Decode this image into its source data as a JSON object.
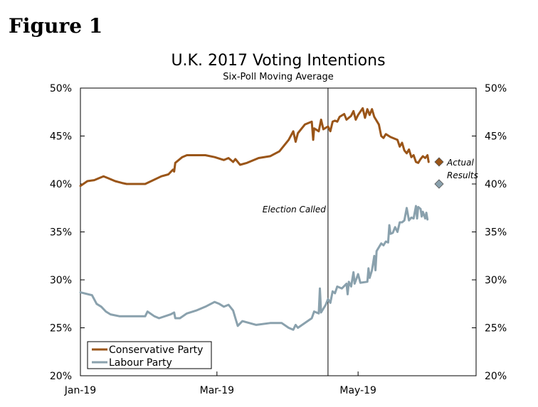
{
  "figure_label": "Figure 1",
  "chart_data": {
    "type": "line",
    "title": "U.K. 2017 Voting Intentions",
    "subtitle": "Six-Poll Moving Average",
    "xlabel": "",
    "ylabel": "",
    "x_ticks": [
      "Jan-19",
      "Mar-19",
      "May-19"
    ],
    "x_tick_days": [
      0,
      59,
      120
    ],
    "xlim": [
      0,
      171
    ],
    "ylim": [
      20,
      50
    ],
    "y_ticks": [
      20,
      25,
      30,
      35,
      40,
      45,
      50
    ],
    "y_tick_labels": [
      "20%",
      "25%",
      "30%",
      "35%",
      "40%",
      "45%",
      "50%"
    ],
    "grid": false,
    "legend_position": "bottom-left",
    "series": [
      {
        "name": "Conservative Party",
        "color": "#9a5518",
        "points": [
          [
            0,
            39.8
          ],
          [
            3,
            40.3
          ],
          [
            6,
            40.4
          ],
          [
            8,
            40.6
          ],
          [
            10,
            40.8
          ],
          [
            12,
            40.6
          ],
          [
            15,
            40.3
          ],
          [
            18,
            40.1
          ],
          [
            20,
            40.0
          ],
          [
            28,
            40.0
          ],
          [
            35,
            40.8
          ],
          [
            38,
            41.0
          ],
          [
            40,
            41.5
          ],
          [
            40.5,
            41.3
          ],
          [
            41,
            42.2
          ],
          [
            44,
            42.8
          ],
          [
            46,
            43.0
          ],
          [
            54,
            43.0
          ],
          [
            58,
            42.8
          ],
          [
            62,
            42.5
          ],
          [
            64,
            42.7
          ],
          [
            66,
            42.3
          ],
          [
            67,
            42.6
          ],
          [
            69,
            42.0
          ],
          [
            72,
            42.2
          ],
          [
            77,
            42.7
          ],
          [
            82,
            42.9
          ],
          [
            86,
            43.4
          ],
          [
            90,
            44.6
          ],
          [
            92,
            45.5
          ],
          [
            93,
            44.4
          ],
          [
            94,
            45.3
          ],
          [
            97,
            46.2
          ],
          [
            100,
            46.5
          ],
          [
            100.6,
            44.6
          ],
          [
            101,
            45.8
          ],
          [
            103,
            45.5
          ],
          [
            104,
            46.7
          ],
          [
            105,
            45.7
          ],
          [
            107,
            46.0
          ],
          [
            108,
            45.5
          ],
          [
            109,
            46.5
          ],
          [
            110,
            46.6
          ],
          [
            111,
            46.5
          ],
          [
            112,
            47.0
          ],
          [
            114,
            47.3
          ],
          [
            115,
            46.7
          ],
          [
            117,
            47.1
          ],
          [
            118,
            47.6
          ],
          [
            119,
            46.7
          ],
          [
            120,
            47.2
          ],
          [
            122,
            47.9
          ],
          [
            123,
            46.9
          ],
          [
            124,
            47.8
          ],
          [
            125,
            47.2
          ],
          [
            126,
            47.8
          ],
          [
            127,
            47.0
          ],
          [
            129,
            46.2
          ],
          [
            130,
            45.0
          ],
          [
            131,
            44.8
          ],
          [
            132,
            45.2
          ],
          [
            134,
            44.9
          ],
          [
            137,
            44.6
          ],
          [
            138,
            43.9
          ],
          [
            139,
            44.3
          ],
          [
            140,
            43.5
          ],
          [
            141,
            43.2
          ],
          [
            142,
            43.6
          ],
          [
            143,
            42.8
          ],
          [
            144,
            43.0
          ],
          [
            145,
            42.3
          ],
          [
            146,
            42.2
          ],
          [
            147,
            42.6
          ],
          [
            148,
            42.9
          ],
          [
            149,
            42.7
          ],
          [
            150,
            43.0
          ],
          [
            150.5,
            42.3
          ]
        ]
      },
      {
        "name": "Labour Party",
        "color": "#8aa1ad",
        "points": [
          [
            0,
            28.7
          ],
          [
            5,
            28.4
          ],
          [
            7,
            27.5
          ],
          [
            9,
            27.2
          ],
          [
            11,
            26.7
          ],
          [
            13,
            26.4
          ],
          [
            17,
            26.2
          ],
          [
            28,
            26.2
          ],
          [
            29,
            26.7
          ],
          [
            32,
            26.2
          ],
          [
            34,
            26.0
          ],
          [
            39,
            26.4
          ],
          [
            40.5,
            26.6
          ],
          [
            41,
            26.0
          ],
          [
            43,
            26.0
          ],
          [
            46,
            26.5
          ],
          [
            50,
            26.8
          ],
          [
            54,
            27.2
          ],
          [
            58,
            27.7
          ],
          [
            60,
            27.5
          ],
          [
            62,
            27.2
          ],
          [
            64,
            27.4
          ],
          [
            66,
            26.8
          ],
          [
            67,
            26.0
          ],
          [
            68,
            25.2
          ],
          [
            70,
            25.7
          ],
          [
            76,
            25.3
          ],
          [
            82,
            25.5
          ],
          [
            87,
            25.5
          ],
          [
            90,
            25.0
          ],
          [
            92,
            24.8
          ],
          [
            93,
            25.3
          ],
          [
            94,
            25.0
          ],
          [
            100,
            26.0
          ],
          [
            101,
            26.7
          ],
          [
            103,
            26.5
          ],
          [
            103.5,
            29.1
          ],
          [
            104,
            26.6
          ],
          [
            106,
            27.4
          ],
          [
            107,
            28.0
          ],
          [
            108,
            27.6
          ],
          [
            109,
            28.8
          ],
          [
            110,
            28.6
          ],
          [
            111,
            29.3
          ],
          [
            113,
            29.1
          ],
          [
            115,
            29.6
          ],
          [
            115.5,
            28.5
          ],
          [
            116,
            29.8
          ],
          [
            117,
            29.3
          ],
          [
            118,
            30.8
          ],
          [
            118.5,
            29.6
          ],
          [
            120,
            30.6
          ],
          [
            121,
            29.7
          ],
          [
            124,
            29.8
          ],
          [
            124.5,
            31.2
          ],
          [
            125,
            30.2
          ],
          [
            126,
            31.0
          ],
          [
            127,
            32.5
          ],
          [
            127.5,
            31.0
          ],
          [
            128,
            33.0
          ],
          [
            130,
            33.8
          ],
          [
            131,
            33.6
          ],
          [
            132,
            34.0
          ],
          [
            133,
            33.9
          ],
          [
            133.5,
            35.7
          ],
          [
            134,
            34.8
          ],
          [
            135,
            34.9
          ],
          [
            136,
            35.5
          ],
          [
            137,
            35.0
          ],
          [
            138,
            36.0
          ],
          [
            139,
            36.0
          ],
          [
            140,
            36.2
          ],
          [
            141,
            37.5
          ],
          [
            142,
            36.2
          ],
          [
            143,
            36.5
          ],
          [
            144,
            36.4
          ],
          [
            145,
            37.7
          ],
          [
            145.5,
            36.4
          ],
          [
            146,
            37.6
          ],
          [
            147,
            37.4
          ],
          [
            147.5,
            36.6
          ],
          [
            148,
            37.1
          ],
          [
            149,
            36.4
          ],
          [
            149.5,
            37.0
          ],
          [
            150,
            36.3
          ]
        ]
      }
    ],
    "actual_results": [
      {
        "party": "Conservative Party",
        "value": 42.3,
        "day": 155,
        "color": "#9a5518"
      },
      {
        "party": "Labour Party",
        "value": 40.0,
        "day": 155,
        "color": "#8aa1ad"
      }
    ],
    "actual_results_label_line1": "Actual",
    "actual_results_label_line2": "Results",
    "election_called": {
      "day": 107,
      "label": "Election Called"
    }
  }
}
